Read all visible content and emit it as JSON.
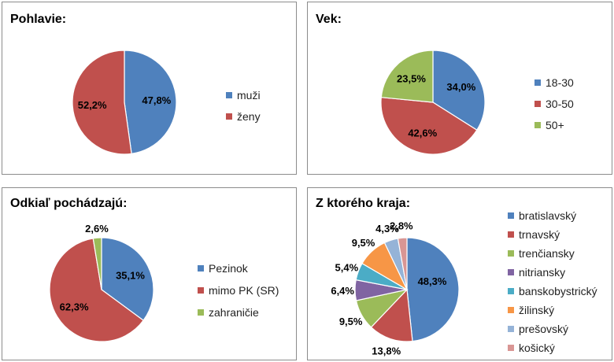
{
  "chart_data": [
    {
      "type": "pie",
      "title": "Pohlavie:",
      "slices": [
        {
          "label": "muži",
          "value": 47.8,
          "display": "47,8%",
          "color": "#4f81bd"
        },
        {
          "label": "ženy",
          "value": 52.2,
          "display": "52,2%",
          "color": "#c0504d"
        }
      ]
    },
    {
      "type": "pie",
      "title": "Vek:",
      "slices": [
        {
          "label": "18-30",
          "value": 34.0,
          "display": "34,0%",
          "color": "#4f81bd"
        },
        {
          "label": "30-50",
          "value": 42.6,
          "display": "42,6%",
          "color": "#c0504d"
        },
        {
          "label": "50+",
          "value": 23.5,
          "display": "23,5%",
          "color": "#9bbb59"
        }
      ]
    },
    {
      "type": "pie",
      "title": "Odkiaľ pochádzajú:",
      "slices": [
        {
          "label": "Pezinok",
          "value": 35.1,
          "display": "35,1%",
          "color": "#4f81bd"
        },
        {
          "label": "mimo PK (SR)",
          "value": 62.3,
          "display": "62,3%",
          "color": "#c0504d"
        },
        {
          "label": "zahraničie",
          "value": 2.6,
          "display": "2,6%",
          "color": "#9bbb59"
        }
      ]
    },
    {
      "type": "pie",
      "title": "Z ktorého kraja:",
      "slices": [
        {
          "label": "bratislavský",
          "value": 48.3,
          "display": "48,3%",
          "color": "#4f81bd"
        },
        {
          "label": "trnavský",
          "value": 13.8,
          "display": "13,8%",
          "color": "#c0504d"
        },
        {
          "label": "trenčiansky",
          "value": 9.5,
          "display": "9,5%",
          "color": "#9bbb59"
        },
        {
          "label": "nitriansky",
          "value": 6.4,
          "display": "6,4%",
          "color": "#8064a2"
        },
        {
          "label": "banskobystrický",
          "value": 5.4,
          "display": "5,4%",
          "color": "#4bacc6"
        },
        {
          "label": "žilinský",
          "value": 9.5,
          "display": "9,5%",
          "color": "#f79646"
        },
        {
          "label": "prešovský",
          "value": 4.3,
          "display": "4,3%",
          "color": "#95b3d7"
        },
        {
          "label": "košický",
          "value": 2.8,
          "display": "2,8%",
          "color": "#d99694"
        }
      ]
    }
  ]
}
